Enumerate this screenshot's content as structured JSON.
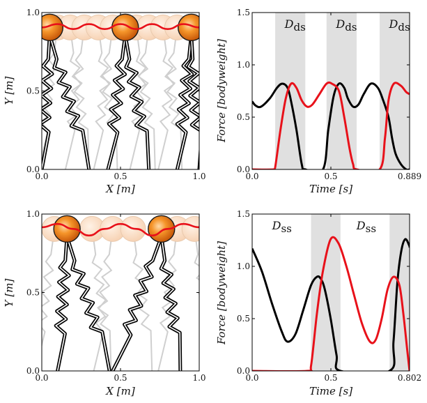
{
  "colors": {
    "red": "#e8111a",
    "black": "#000000",
    "ghost": "#cfcfcf",
    "shade": "#e0e0e0",
    "ball_fill": "#f28a1f",
    "ball_edge": "#1a1a1a"
  },
  "chart_data": [
    {
      "id": "sim-top",
      "type": "scatter",
      "description_kind": "walking-model-trajectory",
      "xlabel_main": "X",
      "xlabel_unit": "[m]",
      "ylabel_main": "Y",
      "ylabel_unit": "[m]",
      "xlim": [
        0,
        1
      ],
      "ylim": [
        0,
        0.95
      ],
      "xticks": [
        "0.0",
        "0.5",
        "1.0"
      ],
      "yticks": [
        "0.0",
        "0.5",
        "1.0"
      ],
      "com_path": {
        "x": [
          0,
          0.1,
          0.2,
          0.3,
          0.4,
          0.5,
          0.6,
          0.7,
          0.8,
          0.9,
          1.0
        ],
        "y": [
          0.86,
          0.88,
          0.85,
          0.88,
          0.85,
          0.88,
          0.85,
          0.88,
          0.85,
          0.88,
          0.86
        ]
      },
      "ghost_positions": [
        0.1,
        0.18,
        0.27,
        0.36,
        0.45,
        0.6,
        0.68,
        0.77,
        0.86
      ],
      "bodies": [
        {
          "x": 0.05,
          "y": 0.86,
          "foot": [
            0.0,
            0.3
          ]
        },
        {
          "x": 0.53,
          "y": 0.86,
          "foot": [
            0.42,
            0.68
          ]
        },
        {
          "x": 0.95,
          "y": 0.86,
          "foot": [
            0.86,
            1.0
          ]
        }
      ]
    },
    {
      "id": "force-top",
      "type": "line",
      "xlabel_main": "Time",
      "xlabel_unit": "[s]",
      "ylabel_main": "Force",
      "ylabel_unit": "[bodyweight]",
      "xlim": [
        0,
        0.889
      ],
      "ylim": [
        0,
        1.5
      ],
      "xticks": [
        "0.0",
        "0.5",
        "0.889"
      ],
      "yticks": [
        "0.0",
        "0.5",
        "1.0",
        "1.5"
      ],
      "shaded_regions": [
        [
          0.13,
          0.3
        ],
        [
          0.42,
          0.59
        ],
        [
          0.72,
          0.889
        ]
      ],
      "annotation_sub": "ds",
      "annotation_main": "D",
      "series": [
        {
          "color": "black",
          "x": [
            0,
            0.02,
            0.05,
            0.1,
            0.14,
            0.17,
            0.2,
            0.22,
            0.25,
            0.28,
            0.3,
            0.4,
            0.43,
            0.46,
            0.49,
            0.52,
            0.54,
            0.57,
            0.6,
            0.63,
            0.67,
            0.71,
            0.74,
            0.77,
            0.79,
            0.81,
            0.84,
            0.87,
            0.889
          ],
          "y": [
            0.65,
            0.61,
            0.6,
            0.68,
            0.78,
            0.82,
            0.78,
            0.65,
            0.38,
            0.05,
            0,
            0,
            0.38,
            0.7,
            0.82,
            0.78,
            0.68,
            0.6,
            0.62,
            0.72,
            0.82,
            0.78,
            0.66,
            0.5,
            0.3,
            0.15,
            0.05,
            0,
            0
          ]
        },
        {
          "color": "red",
          "x": [
            0,
            0.12,
            0.13,
            0.16,
            0.19,
            0.22,
            0.25,
            0.28,
            0.31,
            0.34,
            0.38,
            0.42,
            0.45,
            0.49,
            0.52,
            0.55,
            0.57,
            0.59,
            0.72,
            0.75,
            0.77,
            0.8,
            0.84,
            0.87,
            0.889
          ],
          "y": [
            0,
            0,
            0.02,
            0.38,
            0.68,
            0.82,
            0.78,
            0.66,
            0.6,
            0.62,
            0.72,
            0.82,
            0.82,
            0.75,
            0.5,
            0.2,
            0.05,
            0,
            0,
            0.3,
            0.66,
            0.82,
            0.8,
            0.74,
            0.72
          ]
        }
      ]
    },
    {
      "id": "sim-bottom",
      "type": "scatter",
      "description_kind": "walking-model-trajectory",
      "xlabel_main": "X",
      "xlabel_unit": "[m]",
      "ylabel_main": "Y",
      "ylabel_unit": "[m]",
      "xlim": [
        0,
        1
      ],
      "ylim": [
        0,
        0.95
      ],
      "xticks": [
        "0.0",
        "0.5",
        "1.0"
      ],
      "yticks": [
        "0.0",
        "0.5",
        "1.0"
      ],
      "com_path": {
        "x": [
          0,
          0.1,
          0.2,
          0.3,
          0.4,
          0.5,
          0.6,
          0.7,
          0.8,
          0.9,
          1.0
        ],
        "y": [
          0.87,
          0.89,
          0.86,
          0.82,
          0.86,
          0.89,
          0.86,
          0.82,
          0.86,
          0.89,
          0.87
        ]
      },
      "ghost_positions": [
        0.08,
        0.32,
        0.45,
        0.58,
        0.86,
        0.97
      ],
      "bodies": [
        {
          "x": 0.16,
          "y": 0.86,
          "foot": [
            0.1,
            0.43
          ]
        },
        {
          "x": 0.76,
          "y": 0.86,
          "foot": [
            0.45,
            0.88
          ]
        }
      ]
    },
    {
      "id": "force-bottom",
      "type": "line",
      "xlabel_main": "Time",
      "xlabel_unit": "[s]",
      "ylabel_main": "Force",
      "ylabel_unit": "[bodyweight]",
      "xlim": [
        0,
        0.802
      ],
      "ylim": [
        0,
        1.5
      ],
      "xticks": [
        "0.0",
        "0.5",
        "0.802"
      ],
      "yticks": [
        "0.0",
        "0.5",
        "1.0",
        "1.5"
      ],
      "shaded_regions": [
        [
          0.3,
          0.45
        ],
        [
          0.7,
          0.802
        ]
      ],
      "annotation_sub": "ss",
      "annotation_main": "D",
      "series": [
        {
          "color": "black",
          "x": [
            0,
            0.05,
            0.1,
            0.15,
            0.18,
            0.22,
            0.26,
            0.3,
            0.33,
            0.35,
            0.37,
            0.4,
            0.43,
            0.45,
            0.7,
            0.72,
            0.74,
            0.76,
            0.78,
            0.8,
            0.802
          ],
          "y": [
            1.17,
            0.95,
            0.65,
            0.38,
            0.28,
            0.35,
            0.58,
            0.82,
            0.9,
            0.88,
            0.78,
            0.5,
            0.15,
            0,
            0,
            0.28,
            0.85,
            1.15,
            1.26,
            1.2,
            1.18
          ]
        },
        {
          "color": "red",
          "x": [
            0,
            0.28,
            0.3,
            0.33,
            0.36,
            0.4,
            0.44,
            0.48,
            0.52,
            0.56,
            0.6,
            0.63,
            0.66,
            0.69,
            0.72,
            0.75,
            0.77,
            0.79,
            0.8,
            0.802
          ],
          "y": [
            0,
            0,
            0.05,
            0.55,
            0.95,
            1.26,
            1.22,
            1.0,
            0.72,
            0.45,
            0.28,
            0.3,
            0.5,
            0.78,
            0.9,
            0.82,
            0.55,
            0.2,
            0.03,
            0
          ]
        }
      ]
    }
  ]
}
